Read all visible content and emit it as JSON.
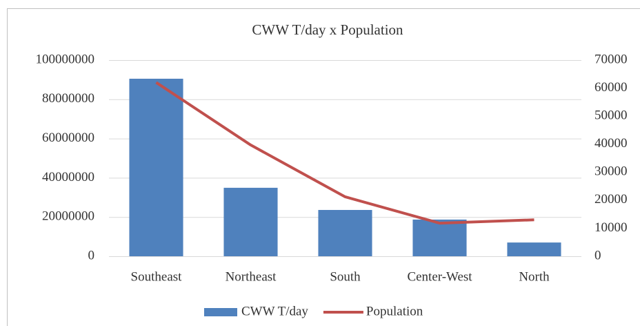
{
  "chart_data": {
    "type": "bar",
    "title": "CWW T/day x Population",
    "categories": [
      "Southeast",
      "Northeast",
      "South",
      "Center-West",
      "North"
    ],
    "series": [
      {
        "name": "CWW T/day",
        "type": "bar",
        "color": "#4f81bd",
        "values": [
          90500000,
          34900000,
          23600000,
          18700000,
          7000000
        ]
      },
      {
        "name": "Population",
        "type": "line",
        "axis": "y2",
        "color": "#c0504d",
        "values": [
          62000,
          39700,
          21200,
          11800,
          13000
        ]
      }
    ],
    "ylim": [
      0,
      100000000
    ],
    "yticks": [
      0,
      20000000,
      40000000,
      60000000,
      80000000,
      100000000
    ],
    "y2lim": [
      0,
      70000
    ],
    "y2ticks": [
      0,
      10000,
      20000,
      30000,
      40000,
      50000,
      60000,
      70000
    ],
    "grid": true,
    "legend": "bottom"
  }
}
